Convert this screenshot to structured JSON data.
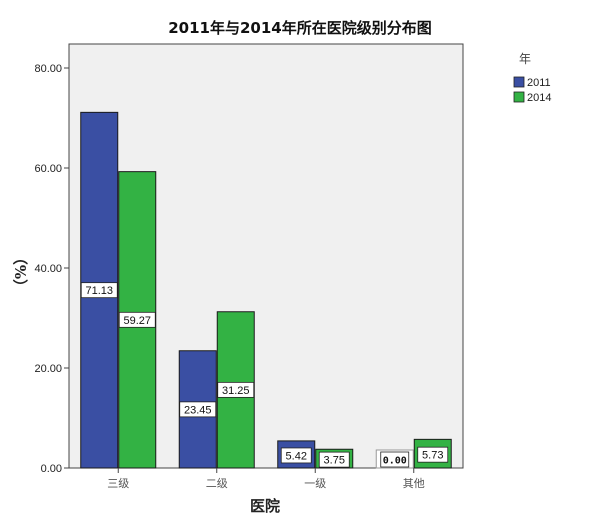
{
  "chart_data": {
    "type": "bar",
    "title": "2011年与2014年所在医院级别分布图",
    "xlabel": "医院",
    "ylabel": "（%）",
    "categories": [
      "三级",
      "二级",
      "一级",
      "其他"
    ],
    "series": [
      {
        "name": "2011",
        "color": "#3a4fa3",
        "values": [
          71.13,
          23.45,
          5.42,
          0.0
        ],
        "labels": [
          "71.13",
          "23.45",
          "5.42",
          "0.00"
        ]
      },
      {
        "name": "2014",
        "color": "#33b244",
        "values": [
          59.27,
          31.25,
          3.75,
          5.73
        ],
        "labels": [
          "59.27",
          "31.25",
          "3.75",
          "5.73"
        ]
      }
    ],
    "ylim": [
      0,
      80
    ],
    "yticks": [
      "0.00",
      "20.00",
      "40.00",
      "60.00",
      "80.00"
    ],
    "legend": {
      "title": "年",
      "placement": "top-right"
    },
    "grid": false,
    "plot_background": "#f0f0f0"
  }
}
